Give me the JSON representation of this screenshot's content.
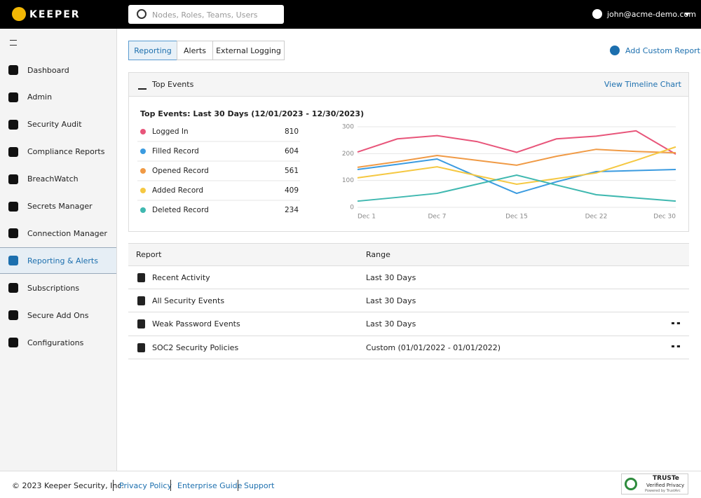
{
  "header": {
    "logo": "KEEPER",
    "search_placeholder": "Nodes, Roles, Teams, Users",
    "user": "john@acme-demo.com"
  },
  "nav": [
    "Dashboard",
    "Admin",
    "Security Audit",
    "Compliance Reports",
    "BreachWatch",
    "Secrets Manager",
    "Connection Manager",
    "Reporting & Alerts",
    "Subscriptions",
    "Secure Add Ons",
    "Configurations"
  ],
  "tabs": [
    "Reporting",
    "Alerts",
    "External Logging"
  ],
  "add_report": "Add Custom Report",
  "panel": {
    "title": "Top Events",
    "link": "View Timeline Chart"
  },
  "chart_data": {
    "type": "line",
    "title": "Top Events: Last 30 Days (12/01/2023 - 12/30/2023)",
    "categories": [
      "Dec 1",
      null,
      "Dec 7",
      null,
      "Dec 15",
      null,
      "Dec 22",
      null,
      "Dec 30"
    ],
    "ylim": [
      0,
      300
    ],
    "yticks": [
      0,
      100,
      200,
      300
    ],
    "grid": true,
    "series": [
      {
        "name": "Logged In",
        "total": 810,
        "color": "#e8557a",
        "values": [
          206,
          255,
          267,
          245,
          205,
          255,
          265,
          285,
          198
        ]
      },
      {
        "name": "Filled Record",
        "total": 604,
        "color": "#3b9be0",
        "values": [
          141,
          160,
          180,
          115,
          52,
          95,
          133,
          137,
          141
        ]
      },
      {
        "name": "Opened Record",
        "total": 561,
        "color": "#f09a45",
        "values": [
          149,
          170,
          193,
          175,
          157,
          190,
          216,
          208,
          203
        ]
      },
      {
        "name": "Added Record",
        "total": 409,
        "color": "#f5c842",
        "values": [
          110,
          130,
          151,
          118,
          86,
          107,
          128,
          175,
          225
        ]
      },
      {
        "name": "Deleted Record",
        "total": 234,
        "color": "#3fb8b0",
        "values": [
          23,
          37,
          52,
          86,
          120,
          83,
          47,
          35,
          23
        ]
      }
    ]
  },
  "table": {
    "columns": [
      "Report",
      "Range"
    ],
    "rows": [
      [
        "Recent Activity",
        "Last 30 Days"
      ],
      [
        "All Security Events",
        "Last 30 Days"
      ],
      [
        "Weak Password Events",
        "Last 30 Days"
      ],
      [
        "SOC2 Security Policies",
        "Custom (01/01/2022 - 01/01/2022)"
      ]
    ]
  },
  "footer": {
    "copyright": "© 2023 Keeper Security, Inc.",
    "links": [
      "Privacy Policy",
      "Enterprise Guide",
      "Support"
    ],
    "badge": [
      "TRUSTe",
      "Verified Privacy",
      "Powered by TrustArc"
    ]
  }
}
